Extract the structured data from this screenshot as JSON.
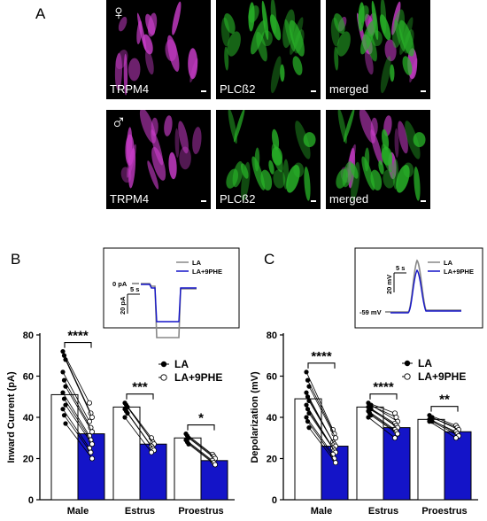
{
  "panel_a": {
    "letter": "A",
    "rows": [
      {
        "sex_symbol": "♀",
        "labels": [
          "TRPM4",
          "PLCß2",
          "merged"
        ]
      },
      {
        "sex_symbol": "♂",
        "labels": [
          "TRPM4",
          "PLCß2",
          "merged"
        ]
      }
    ]
  },
  "panel_b": {
    "letter": "B",
    "inset": {
      "zero_label": "0 pA",
      "time_scale": "5 s",
      "amp_scale": "20 pA",
      "legend": [
        "LA",
        "LA+9PHE"
      ]
    }
  },
  "panel_c": {
    "letter": "C",
    "inset": {
      "baseline_label": "-59 mV",
      "time_scale": "5 s",
      "amp_scale": "20 mV",
      "legend": [
        "LA",
        "LA+9PHE"
      ]
    }
  },
  "colors": {
    "bar_la": "#ffffff",
    "bar_9phe": "#1414c8",
    "trpm4": "#c83cc8",
    "plcb2": "#28b428"
  },
  "chart_data": [
    {
      "type": "bar",
      "ylabel": "Inward Current (pA)",
      "ylim": [
        0,
        80
      ],
      "yticks": [
        0,
        20,
        40,
        60,
        80
      ],
      "categories": [
        "Male",
        "Estrus",
        "Proestrus"
      ],
      "series": [
        {
          "name": "LA",
          "values": [
            51,
            45,
            30
          ]
        },
        {
          "name": "LA+9PHE",
          "values": [
            32,
            27,
            19
          ]
        }
      ],
      "significance": [
        "****",
        "***",
        "*"
      ],
      "legend_position": "right",
      "pairs": [
        [
          [
            72,
            47
          ],
          [
            70,
            42
          ],
          [
            68,
            40
          ],
          [
            62,
            38
          ],
          [
            58,
            35
          ],
          [
            55,
            33
          ],
          [
            52,
            31
          ],
          [
            49,
            29
          ],
          [
            46,
            27
          ],
          [
            44,
            25
          ],
          [
            41,
            23
          ],
          [
            37,
            20
          ]
        ],
        [
          [
            47,
            30
          ],
          [
            46,
            28
          ],
          [
            45,
            27
          ],
          [
            44,
            26
          ],
          [
            43,
            25
          ],
          [
            42,
            24
          ],
          [
            40,
            23
          ]
        ],
        [
          [
            32,
            22
          ],
          [
            31,
            21
          ],
          [
            30,
            20
          ],
          [
            29,
            19
          ],
          [
            28,
            18
          ],
          [
            27,
            17
          ]
        ]
      ]
    },
    {
      "type": "bar",
      "ylabel": "Depolarization (mV)",
      "ylim": [
        0,
        80
      ],
      "yticks": [
        0,
        20,
        40,
        60,
        80
      ],
      "categories": [
        "Male",
        "Estrus",
        "Proestrus"
      ],
      "series": [
        {
          "name": "LA",
          "values": [
            49,
            45,
            39
          ]
        },
        {
          "name": "LA+9PHE",
          "values": [
            26,
            35,
            33
          ]
        }
      ],
      "significance": [
        "****",
        "****",
        "**"
      ],
      "legend_position": "right",
      "pairs": [
        [
          [
            62,
            34
          ],
          [
            58,
            32
          ],
          [
            55,
            30
          ],
          [
            52,
            28
          ],
          [
            50,
            27
          ],
          [
            48,
            26
          ],
          [
            46,
            25
          ],
          [
            44,
            24
          ],
          [
            42,
            23
          ],
          [
            40,
            22
          ],
          [
            38,
            20
          ],
          [
            35,
            18
          ]
        ],
        [
          [
            47,
            42
          ],
          [
            46,
            40
          ],
          [
            46,
            38
          ],
          [
            45,
            37
          ],
          [
            44,
            36
          ],
          [
            44,
            35
          ],
          [
            43,
            34
          ],
          [
            42,
            33
          ],
          [
            41,
            32
          ],
          [
            40,
            30
          ]
        ],
        [
          [
            41,
            36
          ],
          [
            40,
            35
          ],
          [
            40,
            34
          ],
          [
            39,
            33
          ],
          [
            39,
            32
          ],
          [
            38,
            31
          ],
          [
            38,
            30
          ]
        ]
      ]
    }
  ]
}
